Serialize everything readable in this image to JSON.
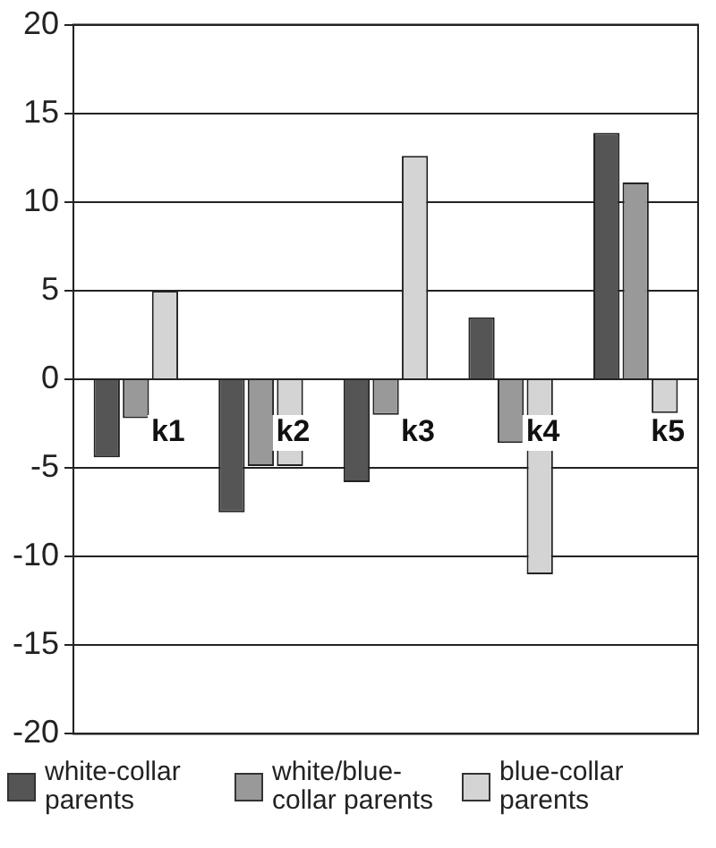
{
  "chart_data": {
    "type": "bar",
    "categories": [
      "k1",
      "k2",
      "k3",
      "k4",
      "k5"
    ],
    "series": [
      {
        "name": "white-collar parents",
        "color": "#555555",
        "values": [
          -4.4,
          -7.5,
          -5.8,
          3.5,
          13.9
        ]
      },
      {
        "name": "white/blue-collar parents",
        "color": "#999999",
        "values": [
          -2.2,
          -4.9,
          -2.0,
          -3.6,
          11.1
        ]
      },
      {
        "name": "blue-collar parents",
        "color": "#d4d4d4",
        "values": [
          5.0,
          -4.9,
          12.6,
          -11.0,
          -1.9
        ]
      }
    ],
    "ylim": [
      -20,
      20
    ],
    "yticks": [
      -20,
      -15,
      -10,
      -5,
      0,
      5,
      10,
      15,
      20
    ],
    "grid": "y",
    "legend": "bottom"
  }
}
